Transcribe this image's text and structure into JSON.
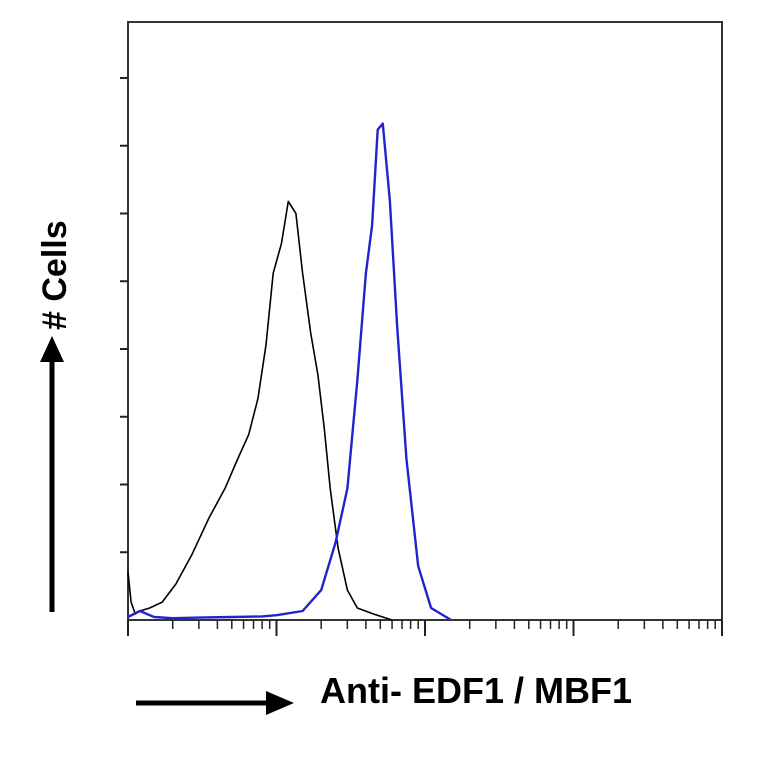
{
  "chart_data": {
    "type": "line",
    "xlabel": "Anti- EDF1 / MBF1",
    "ylabel": "# Cells",
    "x_scale": "log",
    "xlim": [
      1,
      10000
    ],
    "ylim": [
      0,
      100
    ],
    "grid": false,
    "legend": "none",
    "series": [
      {
        "color": "#000000",
        "x": [
          1,
          1.05,
          1.12,
          1.2,
          1.4,
          1.7,
          2.1,
          2.7,
          3.5,
          4.5,
          5.5,
          6.5,
          7.5,
          8.5,
          9.5,
          10.8,
          12,
          13.5,
          15,
          17,
          19,
          21,
          23,
          26,
          30,
          35,
          45,
          60
        ],
        "y": [
          8,
          3,
          1,
          1.5,
          2,
          3,
          6,
          11,
          17,
          22,
          27,
          31,
          37,
          46,
          58,
          63,
          70,
          68,
          58,
          48,
          41,
          32,
          22,
          12,
          5,
          2,
          1,
          0
        ]
      },
      {
        "color": "#2323cc",
        "x": [
          1,
          1.2,
          1.5,
          2,
          3,
          5,
          8,
          10,
          15,
          20,
          25,
          30,
          35,
          40,
          44,
          48,
          52,
          58,
          65,
          75,
          90,
          110,
          150
        ],
        "y": [
          0.5,
          1.5,
          0.5,
          0.3,
          0.4,
          0.5,
          0.6,
          0.8,
          1.5,
          5,
          13,
          22,
          40,
          58,
          66,
          82,
          83,
          70,
          49,
          27,
          9,
          2,
          0
        ]
      }
    ]
  }
}
